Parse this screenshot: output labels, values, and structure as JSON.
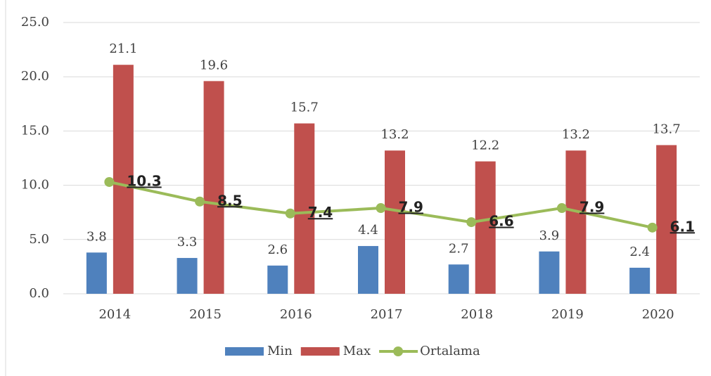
{
  "chart_data": {
    "type": "bar",
    "categories": [
      "2014",
      "2015",
      "2016",
      "2017",
      "2018",
      "2019",
      "2020"
    ],
    "series": [
      {
        "name": "Min",
        "color": "#4f81bd",
        "values": [
          3.8,
          3.3,
          2.6,
          4.4,
          2.7,
          3.9,
          2.4
        ]
      },
      {
        "name": "Max",
        "color": "#c0504d",
        "values": [
          21.1,
          19.6,
          15.7,
          13.2,
          12.2,
          13.2,
          13.7
        ]
      },
      {
        "name": "Ortalama",
        "type": "line",
        "color": "#9bbb59",
        "values": [
          10.3,
          8.5,
          7.4,
          7.9,
          6.6,
          7.9,
          6.1
        ]
      }
    ],
    "ylim": [
      0,
      25
    ],
    "yticks": [
      {
        "value": 0,
        "label": "0.0"
      },
      {
        "value": 5,
        "label": "5.0"
      },
      {
        "value": 10,
        "label": "10.0"
      },
      {
        "value": 15,
        "label": "15.0"
      },
      {
        "value": 20,
        "label": "20.0"
      },
      {
        "value": 25,
        "label": "25.0"
      }
    ],
    "grid": true,
    "legend": "bottom"
  }
}
